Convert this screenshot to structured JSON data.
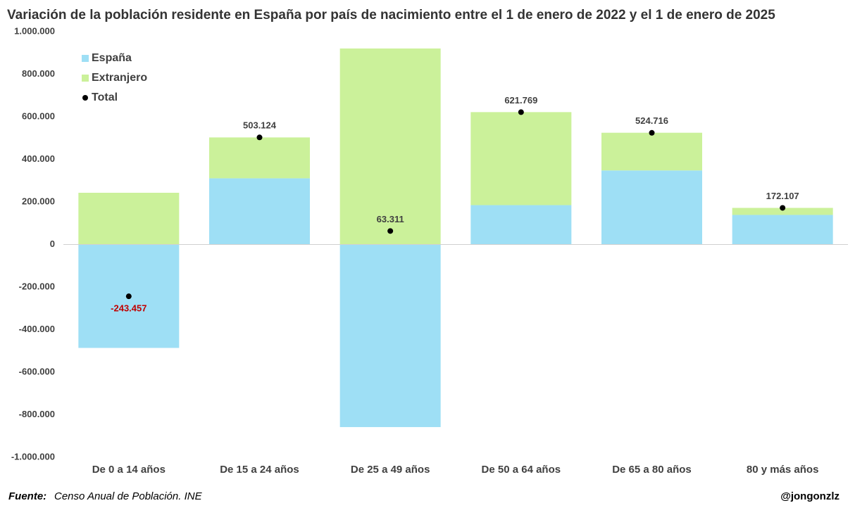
{
  "chart_data": {
    "type": "stacked-bar",
    "title": "Variación de la población residente en España por país de nacimiento entre el 1 de enero de 2022 y el 1 de enero de 2025",
    "categories": [
      "De 0 a 14 años",
      "De 15 a 24 años",
      "De 25 a 49 años",
      "De 50 a 64 años",
      "De 65 a 80 años",
      "80 y más años"
    ],
    "series": [
      {
        "name": "España",
        "color": "#9edff5",
        "values": [
          -486000,
          311000,
          -858000,
          185000,
          348000,
          139000
        ]
      },
      {
        "name": "Extranjero",
        "color": "#cbf19a",
        "values": [
          243000,
          192000,
          921000,
          437000,
          177000,
          33000
        ]
      },
      {
        "name": "Total",
        "color": "#000000",
        "values": [
          -243457,
          503124,
          63311,
          621769,
          524716,
          172107
        ],
        "value_labels": [
          "-243.457",
          "503.124",
          "63.311",
          "621.769",
          "524.716",
          "172.107"
        ]
      }
    ],
    "ylim": [
      -1000000,
      1000000
    ],
    "yticks": [
      {
        "value": -1000000,
        "label": "-1.000.000"
      },
      {
        "value": -800000,
        "label": "-800.000"
      },
      {
        "value": -600000,
        "label": "-600.000"
      },
      {
        "value": -400000,
        "label": "-400.000"
      },
      {
        "value": -200000,
        "label": "-200.000"
      },
      0,
      {
        "value": 200000,
        "label": "200.000"
      },
      {
        "value": 400000,
        "label": "400.000"
      },
      {
        "value": 600000,
        "label": "600.000"
      },
      {
        "value": 800000,
        "label": "800.000"
      },
      {
        "value": 1000000,
        "label": "1.000.000"
      }
    ],
    "legend": "top-left",
    "source_label": "Fuente:",
    "source": "Censo Anual de Población. INE",
    "credit": "@jongonzlz"
  }
}
